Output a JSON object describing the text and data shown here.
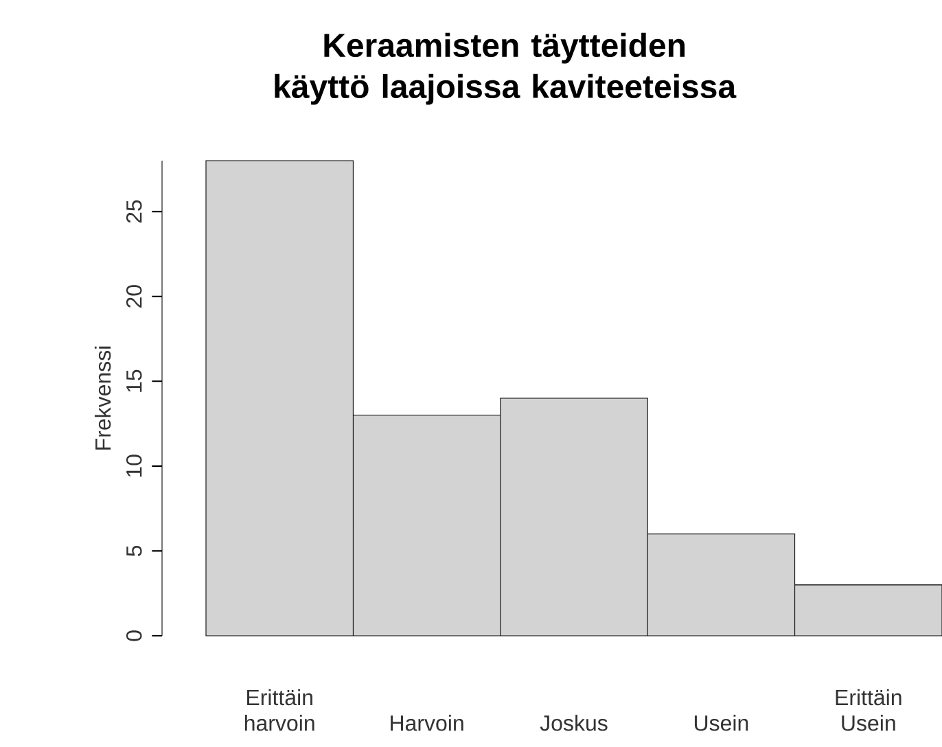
{
  "chart_data": {
    "type": "bar",
    "title": "Keraamisten täytteiden käyttö laajoissa kaviteeteissa",
    "ylabel": "Frekvenssi",
    "categories": [
      "Erittäin harvoin",
      "Harvoin",
      "Joskus",
      "Usein",
      "Erittäin Usein"
    ],
    "values": [
      28,
      13,
      14,
      6,
      3
    ],
    "color": "#d3d3d3",
    "ylim": [
      0,
      28
    ],
    "yticks": [
      0,
      5,
      10,
      15,
      20,
      25
    ]
  }
}
